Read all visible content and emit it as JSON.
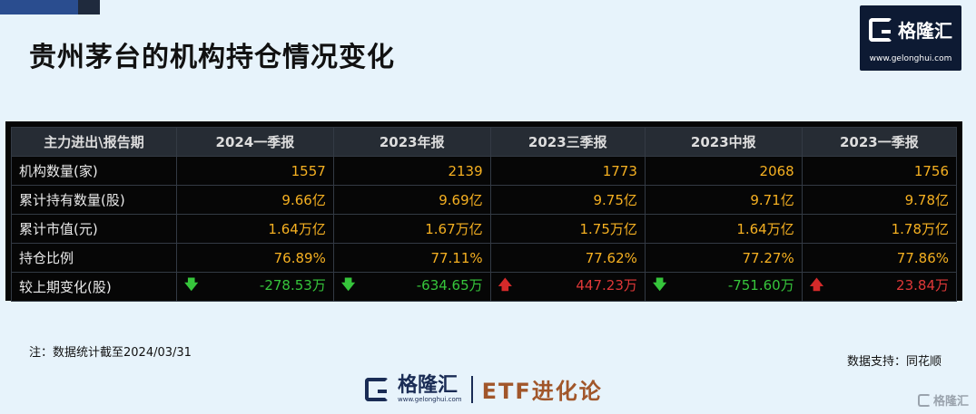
{
  "title": "贵州茅台的机构持仓情况变化",
  "logo": {
    "brand": "格隆汇",
    "url": "www.gelonghui.com"
  },
  "table": {
    "header": [
      "主力进出\\报告期",
      "2024一季报",
      "2023年报",
      "2023三季报",
      "2023中报",
      "2023一季报"
    ],
    "rows": [
      {
        "label": "机构数量(家)",
        "cells": [
          "1557",
          "2139",
          "1773",
          "2068",
          "1756"
        ]
      },
      {
        "label": "累计持有数量(股)",
        "cells": [
          "9.66亿",
          "9.69亿",
          "9.75亿",
          "9.71亿",
          "9.78亿"
        ]
      },
      {
        "label": "累计市值(元)",
        "cells": [
          "1.64万亿",
          "1.67万亿",
          "1.75万亿",
          "1.64万亿",
          "1.78万亿"
        ]
      },
      {
        "label": "持仓比例",
        "cells": [
          "76.89%",
          "77.11%",
          "77.62%",
          "77.27%",
          "77.86%"
        ]
      },
      {
        "label": "较上期变化(股)",
        "cells": [
          "-278.53万",
          "-634.65万",
          "447.23万",
          "-751.60万",
          "23.84万"
        ],
        "directions": [
          "down",
          "down",
          "up",
          "down",
          "up"
        ]
      }
    ],
    "watermark": "格隆汇 ETF进化论"
  },
  "note": "注：数据统计截至2024/03/31",
  "source": "数据支持：同花顺",
  "footer": {
    "brand": "格隆汇",
    "url": "www.gelonghui.com",
    "column": "ETF进化论"
  },
  "corner_watermark": "格隆汇",
  "colors": {
    "value": "#f5b021",
    "up": "#e03838",
    "down": "#36c53b",
    "brand": "#1a2c55"
  }
}
